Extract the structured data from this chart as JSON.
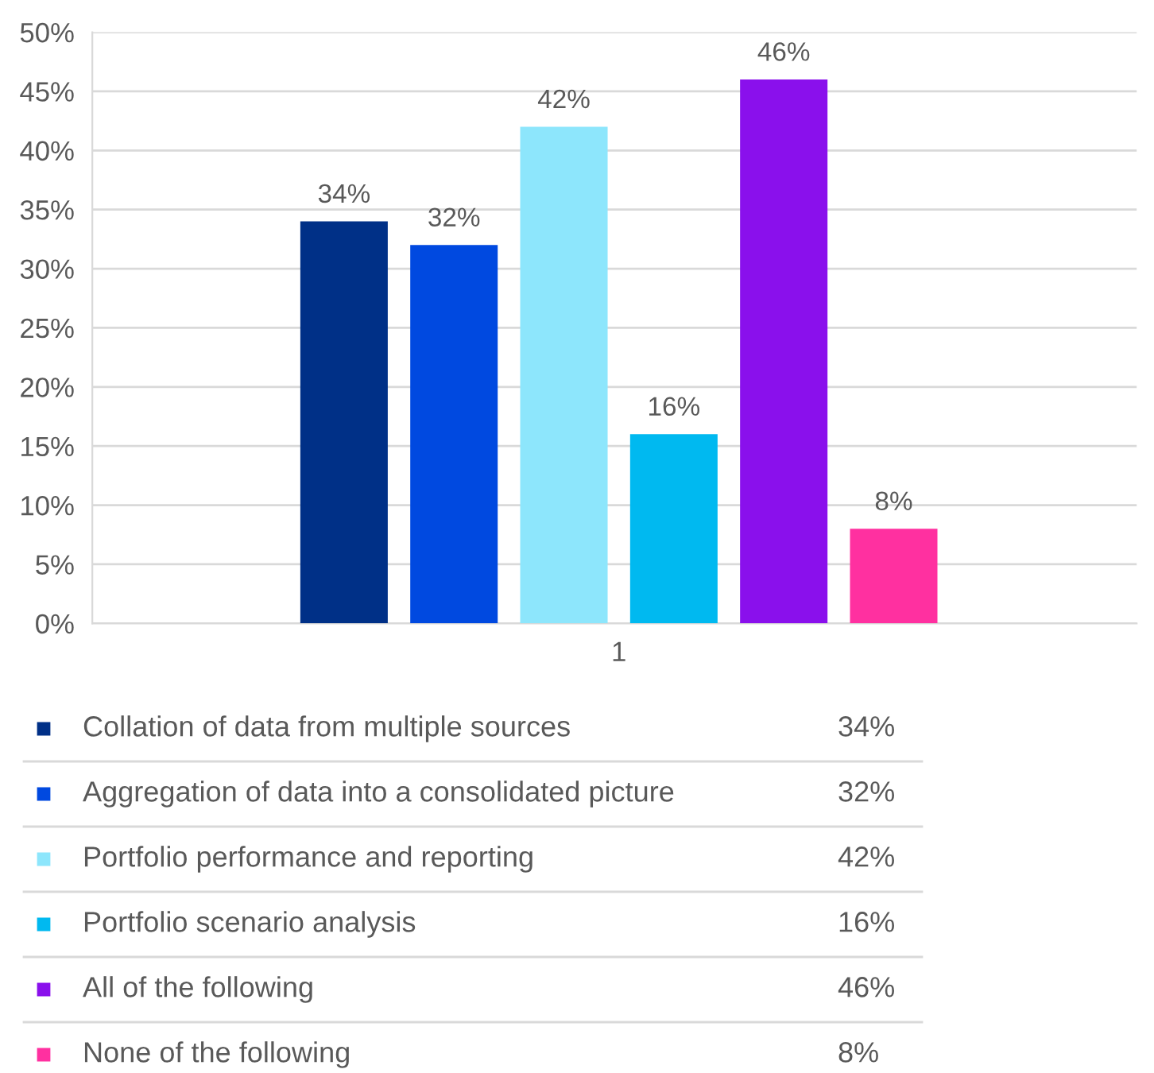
{
  "chart_data": {
    "type": "bar",
    "categories": [
      "1"
    ],
    "series": [
      {
        "name": "Collation of data from multiple sources",
        "color": "#003087",
        "values": [
          34
        ],
        "value_labels": [
          "34%"
        ]
      },
      {
        "name": "Aggregation of data into a consolidated picture",
        "color": "#0049e0",
        "values": [
          32
        ],
        "value_labels": [
          "32%"
        ]
      },
      {
        "name": "Portfolio performance and reporting",
        "color": "#8de6fc",
        "values": [
          42
        ],
        "value_labels": [
          "42%"
        ]
      },
      {
        "name": "Portfolio scenario analysis",
        "color": "#00b9f0",
        "values": [
          16
        ],
        "value_labels": [
          "16%"
        ]
      },
      {
        "name": "All of the following",
        "color": "#8a10ec",
        "values": [
          46
        ],
        "value_labels": [
          "46%"
        ]
      },
      {
        "name": "None of the following",
        "color": "#ff30a0",
        "values": [
          8
        ],
        "value_labels": [
          "8%"
        ]
      }
    ],
    "ylim": [
      0,
      50
    ],
    "yticks": [
      {
        "value": 0,
        "label": "0%"
      },
      {
        "value": 5,
        "label": "5%"
      },
      {
        "value": 10,
        "label": "10%"
      },
      {
        "value": 15,
        "label": "15%"
      },
      {
        "value": 20,
        "label": "20%"
      },
      {
        "value": 25,
        "label": "25%"
      },
      {
        "value": 30,
        "label": "30%"
      },
      {
        "value": 35,
        "label": "35%"
      },
      {
        "value": 40,
        "label": "40%"
      },
      {
        "value": 45,
        "label": "45%"
      },
      {
        "value": 50,
        "label": "50%"
      }
    ],
    "grid": "y",
    "legend": "bottom"
  }
}
